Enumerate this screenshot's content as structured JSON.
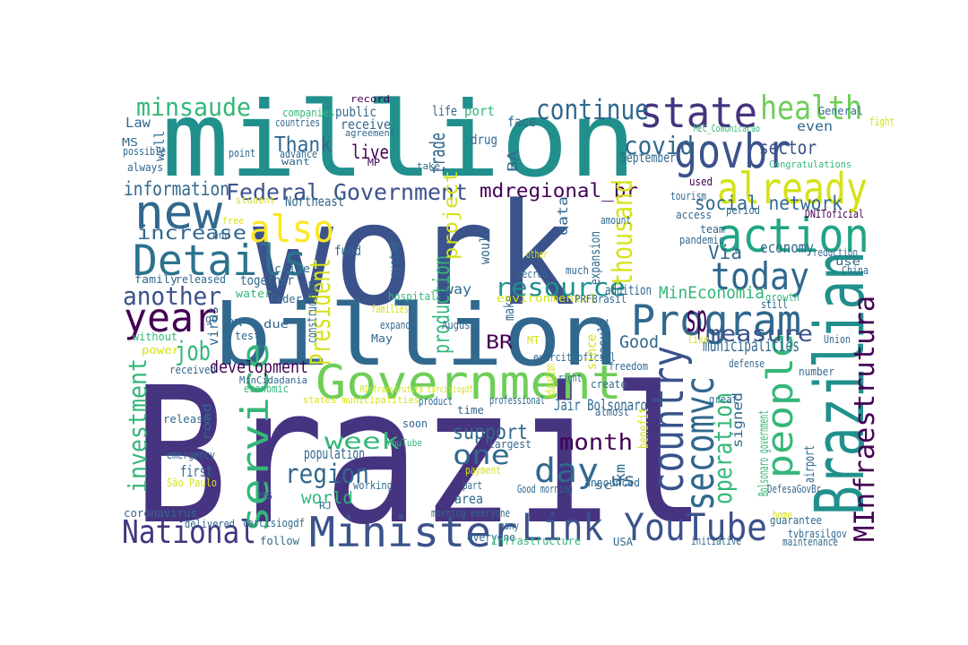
{
  "palette": {
    "indigo": "#463480",
    "purple": "#440154",
    "blue": "#3b528b",
    "steel": "#31688e",
    "teal": "#21908c",
    "green": "#35b779",
    "lime": "#6ece58",
    "yellow": "#d5e21a",
    "bright_yellow": "#fde725"
  },
  "words": [
    {
      "text": "Brazil",
      "color": "#463480"
    },
    {
      "text": "work",
      "color": "#3b528b"
    },
    {
      "text": "million",
      "color": "#21908c"
    },
    {
      "text": "billion",
      "color": "#31688e"
    },
    {
      "text": "Government",
      "color": "#6ece58"
    },
    {
      "text": "state",
      "color": "#463480"
    },
    {
      "text": "Program",
      "color": "#31688e"
    },
    {
      "text": "new",
      "color": "#31688e"
    },
    {
      "text": "Details",
      "color": "#2c728e"
    },
    {
      "text": "govbr",
      "color": "#3b528b"
    },
    {
      "text": "action",
      "color": "#21a585"
    },
    {
      "text": "already",
      "color": "#d5e21a"
    },
    {
      "text": "health",
      "color": "#6ece58"
    },
    {
      "text": "year",
      "color": "#440154"
    },
    {
      "text": "also",
      "color": "#fde725"
    },
    {
      "text": "today",
      "color": "#31688e"
    },
    {
      "text": "Minister",
      "color": "#3b528b"
    },
    {
      "text": "Link YouTube",
      "color": "#3b528b"
    },
    {
      "text": "National",
      "color": "#463480"
    },
    {
      "text": "Brazilian",
      "color": "#21908c"
    },
    {
      "text": "MInfraestrutura",
      "color": "#440154"
    },
    {
      "text": "people",
      "color": "#35b779"
    },
    {
      "text": "country",
      "color": "#3b528b"
    },
    {
      "text": "secomvc",
      "color": "#31688e"
    },
    {
      "text": "service",
      "color": "#35b779"
    },
    {
      "text": "President",
      "color": "#d5e21a"
    },
    {
      "text": "investment",
      "color": "#35b779"
    },
    {
      "text": "continue",
      "color": "#31688e"
    },
    {
      "text": "minsaude",
      "color": "#35b779"
    },
    {
      "text": "Federal Government",
      "color": "#3b528b"
    },
    {
      "text": "covid",
      "color": "#31688e"
    },
    {
      "text": "mdregional_br",
      "color": "#440154"
    },
    {
      "text": "social network",
      "color": "#31688e"
    },
    {
      "text": "resource",
      "color": "#21908c"
    },
    {
      "text": "measure",
      "color": "#3b528b"
    },
    {
      "text": "week",
      "color": "#35b779"
    },
    {
      "text": "one",
      "color": "#31688e"
    },
    {
      "text": "day",
      "color": "#31688e"
    },
    {
      "text": "month",
      "color": "#440154"
    },
    {
      "text": "region",
      "color": "#31688e"
    },
    {
      "text": "support",
      "color": "#31688e"
    },
    {
      "text": "job",
      "color": "#35b779"
    },
    {
      "text": "another",
      "color": "#3b528b"
    },
    {
      "text": "sector",
      "color": "#3b528b"
    },
    {
      "text": "thousand",
      "color": "#d5e21a"
    },
    {
      "text": "operation",
      "color": "#35b779"
    },
    {
      "text": "Thank",
      "color": "#31688e"
    },
    {
      "text": "information",
      "color": "#31688e"
    },
    {
      "text": "increase",
      "color": "#31688e"
    },
    {
      "text": "live",
      "color": "#440154"
    },
    {
      "text": "production",
      "color": "#35b779"
    },
    {
      "text": "development",
      "color": "#440154"
    },
    {
      "text": "world",
      "color": "#35b779"
    },
    {
      "text": "Good",
      "color": "#31688e"
    },
    {
      "text": "MinEconomia",
      "color": "#35b779"
    },
    {
      "text": "Via",
      "color": "#31688e"
    },
    {
      "text": "BR",
      "color": "#440154"
    },
    {
      "text": "sp",
      "color": "#440154"
    },
    {
      "text": "municipalities",
      "color": "#31688e"
    },
    {
      "text": "economy",
      "color": "#31688e"
    },
    {
      "text": "Jair Bolsonaro",
      "color": "#31688e"
    },
    {
      "text": "September",
      "color": "#31688e"
    },
    {
      "text": "project",
      "color": "#d5e21a"
    },
    {
      "text": "first",
      "color": "#31688e"
    },
    {
      "text": "population",
      "color": "#31688e"
    },
    {
      "text": "us",
      "color": "#31688e"
    },
    {
      "text": "area",
      "color": "#31688e"
    },
    {
      "text": "way",
      "color": "#31688e"
    },
    {
      "text": "addition",
      "color": "#31688e"
    },
    {
      "text": "fund",
      "color": "#31688e"
    },
    {
      "text": "together",
      "color": "#31688e"
    },
    {
      "text": "Northeast",
      "color": "#31688e"
    },
    {
      "text": "Law",
      "color": "#31688e"
    },
    {
      "text": "public",
      "color": "#31688e"
    },
    {
      "text": "receive",
      "color": "#31688e"
    },
    {
      "text": "port",
      "color": "#35b779"
    },
    {
      "text": "life",
      "color": "#31688e"
    },
    {
      "text": "companies",
      "color": "#35b779"
    },
    {
      "text": "countries",
      "color": "#31688e"
    },
    {
      "text": "record",
      "color": "#440154"
    },
    {
      "text": "agreement",
      "color": "#31688e"
    },
    {
      "text": "face",
      "color": "#31688e"
    },
    {
      "text": "trade",
      "color": "#31688e"
    },
    {
      "text": "drug",
      "color": "#31688e"
    },
    {
      "text": "even",
      "color": "#31688e"
    },
    {
      "text": "fight",
      "color": "#d5e21a"
    },
    {
      "text": "General",
      "color": "#31688e"
    },
    {
      "text": "MEC_Comunicacao",
      "color": "#35b779"
    },
    {
      "text": "Congratulations",
      "color": "#35b779"
    },
    {
      "text": "MS",
      "color": "#31688e"
    },
    {
      "text": "well",
      "color": "#31688e"
    },
    {
      "text": "possible",
      "color": "#31688e"
    },
    {
      "text": "always",
      "color": "#31688e"
    },
    {
      "text": "point",
      "color": "#31688e"
    },
    {
      "text": "advance",
      "color": "#31688e"
    },
    {
      "text": "want",
      "color": "#31688e"
    },
    {
      "text": "MP",
      "color": "#440154"
    },
    {
      "text": "take",
      "color": "#31688e"
    },
    {
      "text": "BA",
      "color": "#31688e"
    },
    {
      "text": "used",
      "color": "#440154"
    },
    {
      "text": "tourism",
      "color": "#31688e"
    },
    {
      "text": "access",
      "color": "#31688e"
    },
    {
      "text": "period",
      "color": "#31688e"
    },
    {
      "text": "DNIToficial",
      "color": "#440154"
    },
    {
      "text": "team",
      "color": "#31688e"
    },
    {
      "text": "pandemic",
      "color": "#31688e"
    },
    {
      "text": "reduction",
      "color": "#31688e"
    },
    {
      "text": "use",
      "color": "#31688e"
    },
    {
      "text": "China",
      "color": "#31688e"
    },
    {
      "text": "growth",
      "color": "#35b779"
    },
    {
      "text": "student",
      "color": "#d5e21a"
    },
    {
      "text": "free",
      "color": "#d5e21a"
    },
    {
      "text": "end",
      "color": "#31688e"
    },
    {
      "text": "family",
      "color": "#31688e"
    },
    {
      "text": "released",
      "color": "#31688e"
    },
    {
      "text": "water",
      "color": "#35b779"
    },
    {
      "text": "Federal",
      "color": "#31688e"
    },
    {
      "text": "crime",
      "color": "#31688e"
    },
    {
      "text": "virus",
      "color": "#31688e"
    },
    {
      "text": "go",
      "color": "#31688e"
    },
    {
      "text": "due",
      "color": "#31688e"
    },
    {
      "text": "test",
      "color": "#31688e"
    },
    {
      "text": "PR",
      "color": "#31688e"
    },
    {
      "text": "without",
      "color": "#35b779"
    },
    {
      "text": "power",
      "color": "#d5e21a"
    },
    {
      "text": "received",
      "color": "#31688e"
    },
    {
      "text": "economic",
      "color": "#35b779"
    },
    {
      "text": "MinCidadania",
      "color": "#31688e"
    },
    {
      "text": "release",
      "color": "#31688e"
    },
    {
      "text": "road",
      "color": "#31688e"
    },
    {
      "text": "emergency",
      "color": "#31688e"
    },
    {
      "text": "São Paulo",
      "color": "#d5e21a"
    },
    {
      "text": "coronavirus",
      "color": "#31688e"
    },
    {
      "text": "delivered",
      "color": "#31688e"
    },
    {
      "text": "MG",
      "color": "#31688e"
    },
    {
      "text": "tarcisiogdf",
      "color": "#31688e"
    },
    {
      "text": "follow",
      "color": "#31688e"
    },
    {
      "text": "RJ",
      "color": "#31688e"
    },
    {
      "text": "working",
      "color": "#31688e"
    },
    {
      "text": "payment",
      "color": "#d5e21a"
    },
    {
      "text": "YouTube",
      "color": "#35b779"
    },
    {
      "text": "soon",
      "color": "#31688e"
    },
    {
      "text": "time",
      "color": "#31688e"
    },
    {
      "text": "states municipalities",
      "color": "#d5e21a"
    },
    {
      "text": "MInfraestrutura tarcisiogdf",
      "color": "#d5e21a"
    },
    {
      "text": "product",
      "color": "#31688e"
    },
    {
      "text": "professional",
      "color": "#31688e"
    },
    {
      "text": "largest",
      "color": "#31688e"
    },
    {
      "text": "part",
      "color": "#31688e"
    },
    {
      "text": "Good morning",
      "color": "#31688e"
    },
    {
      "text": "morning everyone",
      "color": "#31688e"
    },
    {
      "text": "everyone",
      "color": "#31688e"
    },
    {
      "text": "many",
      "color": "#31688e"
    },
    {
      "text": "infrastructure",
      "color": "#35b779"
    },
    {
      "text": "announced",
      "color": "#31688e"
    },
    {
      "text": "km",
      "color": "#31688e"
    },
    {
      "text": "sc",
      "color": "#31688e"
    },
    {
      "text": "USA",
      "color": "#31688e"
    },
    {
      "text": "almost",
      "color": "#31688e"
    },
    {
      "text": "great",
      "color": "#31688e"
    },
    {
      "text": "create",
      "color": "#31688e"
    },
    {
      "text": "freedom",
      "color": "#31688e"
    },
    {
      "text": "exercitooficial",
      "color": "#31688e"
    },
    {
      "text": "right",
      "color": "#31688e"
    },
    {
      "text": "education",
      "color": "#d5e21a"
    },
    {
      "text": "since",
      "color": "#d5e21a"
    },
    {
      "text": "result",
      "color": "#31688e"
    },
    {
      "text": "like",
      "color": "#d5e21a"
    },
    {
      "text": "MT",
      "color": "#d5e21a"
    },
    {
      "text": "make",
      "color": "#31688e"
    },
    {
      "text": "environmental",
      "color": "#d5e21a"
    },
    {
      "text": "PRFBrasil",
      "color": "#31688e"
    },
    {
      "text": "expand",
      "color": "#31688e"
    },
    {
      "text": "August",
      "color": "#31688e"
    },
    {
      "text": "May",
      "color": "#31688e"
    },
    {
      "text": "families",
      "color": "#d5e21a"
    },
    {
      "text": "hospital",
      "color": "#35b779"
    },
    {
      "text": "construction",
      "color": "#31688e"
    },
    {
      "text": "system",
      "color": "#31688e"
    },
    {
      "text": "other",
      "color": "#d5e21a"
    },
    {
      "text": "decree",
      "color": "#31688e"
    },
    {
      "text": "much",
      "color": "#31688e"
    },
    {
      "text": "expansion",
      "color": "#31688e"
    },
    {
      "text": "amount",
      "color": "#31688e"
    },
    {
      "text": "data",
      "color": "#31688e"
    },
    {
      "text": "would",
      "color": "#31688e"
    },
    {
      "text": "defense",
      "color": "#31688e"
    },
    {
      "text": "number",
      "color": "#31688e"
    },
    {
      "text": "Union",
      "color": "#31688e"
    },
    {
      "text": "benefit",
      "color": "#d5e21a"
    },
    {
      "text": "signed",
      "color": "#31688e"
    },
    {
      "text": "airport",
      "color": "#31688e"
    },
    {
      "text": "Bolsonaro government",
      "color": "#35b779"
    },
    {
      "text": "DefesaGovBr",
      "color": "#31688e"
    },
    {
      "text": "home",
      "color": "#d5e21a"
    },
    {
      "text": "guarantee",
      "color": "#31688e"
    },
    {
      "text": "tvbrasilgov",
      "color": "#31688e"
    },
    {
      "text": "initiative",
      "color": "#31688e"
    },
    {
      "text": "maintenance",
      "color": "#31688e"
    },
    {
      "text": "still",
      "color": "#31688e"
    }
  ]
}
